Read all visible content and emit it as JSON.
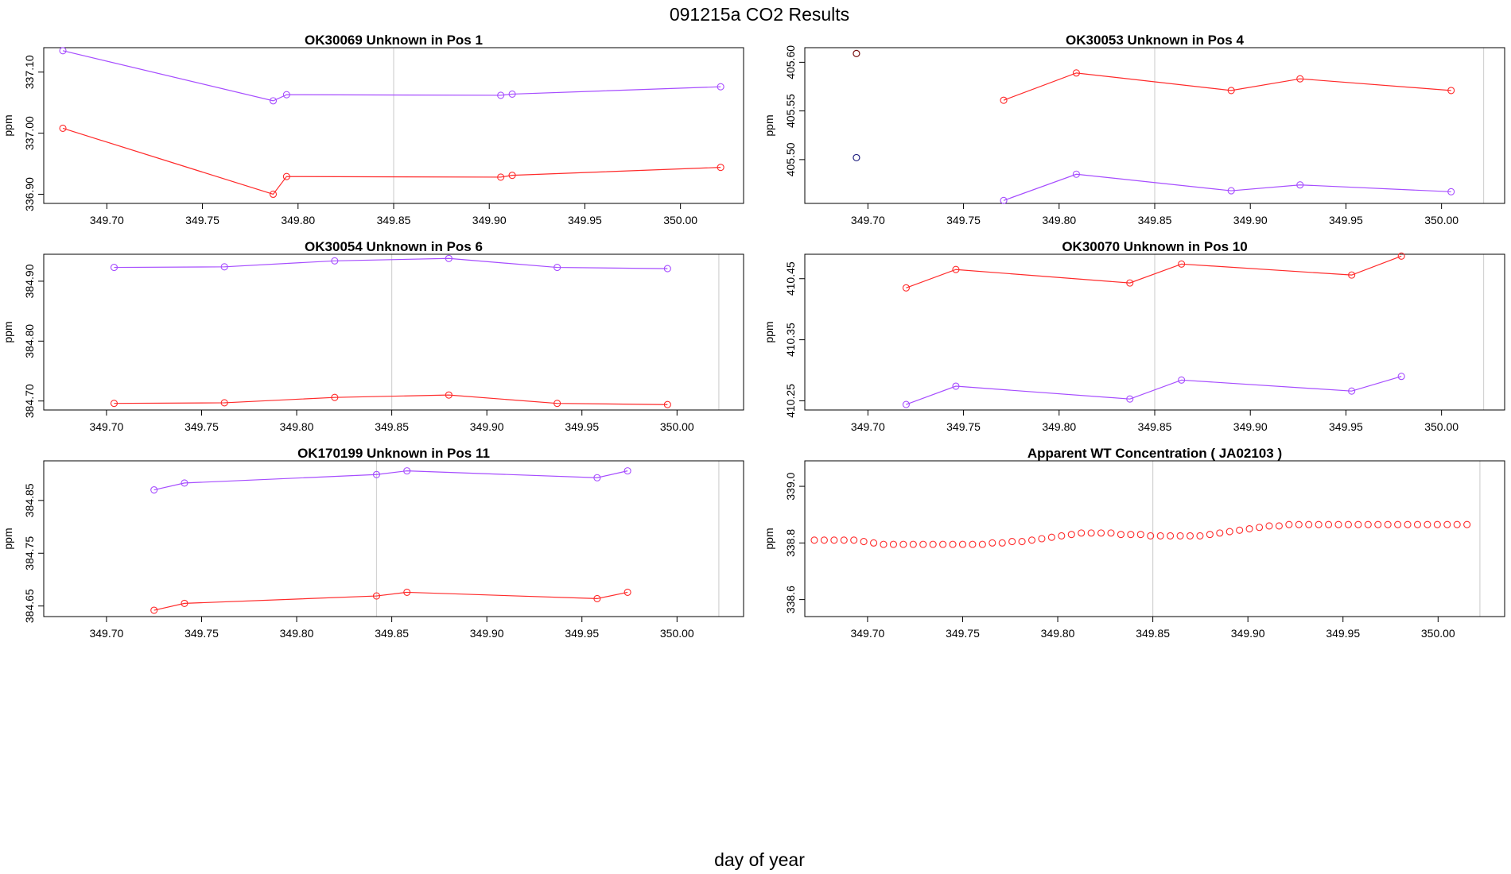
{
  "figure": {
    "title": "091215a  CO2 Results",
    "xlabel": "day of year"
  },
  "chart_data": [
    {
      "type": "line",
      "title": "OK30069    Unknown in Pos 1",
      "ylabel": "ppm",
      "xlim": [
        349.667,
        350.033
      ],
      "ylim": [
        336.885,
        337.14
      ],
      "xticks": [
        "349.70",
        "349.75",
        "349.80",
        "349.85",
        "349.90",
        "349.95",
        "350.00"
      ],
      "yticks": [
        "336.90",
        "337.00",
        "337.10"
      ],
      "vlines": [
        349.85
      ],
      "series": [
        {
          "name": "purple",
          "color": "#a64dff",
          "x": [
            349.677,
            349.787,
            349.794,
            349.906,
            349.912,
            350.021
          ],
          "y": [
            337.135,
            337.053,
            337.063,
            337.062,
            337.064,
            337.076
          ]
        },
        {
          "name": "red",
          "color": "#ff2a2a",
          "x": [
            349.677,
            349.787,
            349.794,
            349.906,
            349.912,
            350.021
          ],
          "y": [
            337.008,
            336.9,
            336.929,
            336.928,
            336.931,
            336.944
          ]
        }
      ]
    },
    {
      "type": "line",
      "title": "OK30053    Unknown in Pos 4",
      "ylabel": "ppm",
      "xlim": [
        349.667,
        350.033
      ],
      "ylim": [
        405.455,
        405.615
      ],
      "xticks": [
        "349.70",
        "349.75",
        "349.80",
        "349.85",
        "349.90",
        "349.95",
        "350.00"
      ],
      "yticks": [
        "405.50",
        "405.55",
        "405.60"
      ],
      "vlines": [
        349.85,
        350.022
      ],
      "series": [
        {
          "name": "red",
          "color": "#ff2a2a",
          "x": [
            349.771,
            349.809,
            349.89,
            349.926,
            350.005
          ],
          "y": [
            405.561,
            405.589,
            405.571,
            405.583,
            405.571
          ]
        },
        {
          "name": "purple",
          "color": "#a64dff",
          "x": [
            349.771,
            349.809,
            349.89,
            349.926,
            350.005
          ],
          "y": [
            405.458,
            405.485,
            405.468,
            405.474,
            405.467
          ]
        }
      ],
      "markers": [
        {
          "name": "dark-red",
          "color": "#7a1010",
          "x": 349.694,
          "y": 405.609
        },
        {
          "name": "dark-blue",
          "color": "#202080",
          "x": 349.694,
          "y": 405.502
        }
      ]
    },
    {
      "type": "line",
      "title": "OK30054    Unknown in Pos 6",
      "ylabel": "ppm",
      "xlim": [
        349.667,
        350.035
      ],
      "ylim": [
        384.685,
        384.945
      ],
      "xticks": [
        "349.70",
        "349.75",
        "349.80",
        "349.85",
        "349.90",
        "349.95",
        "350.00"
      ],
      "yticks": [
        "384.70",
        "384.80",
        "384.90"
      ],
      "vlines": [
        349.85,
        350.022
      ],
      "series": [
        {
          "name": "purple",
          "color": "#a64dff",
          "x": [
            349.704,
            349.762,
            349.82,
            349.88,
            349.937,
            349.995
          ],
          "y": [
            384.923,
            384.924,
            384.934,
            384.938,
            384.923,
            384.921
          ]
        },
        {
          "name": "red",
          "color": "#ff2a2a",
          "x": [
            349.704,
            349.762,
            349.82,
            349.88,
            349.937,
            349.995
          ],
          "y": [
            384.696,
            384.697,
            384.706,
            384.71,
            384.696,
            384.694
          ]
        }
      ]
    },
    {
      "type": "line",
      "title": "OK30070    Unknown in Pos 10",
      "ylabel": "ppm",
      "xlim": [
        349.667,
        350.033
      ],
      "ylim": [
        410.235,
        410.49
      ],
      "xticks": [
        "349.70",
        "349.75",
        "349.80",
        "349.85",
        "349.90",
        "349.95",
        "350.00"
      ],
      "yticks": [
        "410.25",
        "410.35",
        "410.45"
      ],
      "vlines": [
        349.85,
        350.022
      ],
      "series": [
        {
          "name": "red",
          "color": "#ff2a2a",
          "x": [
            349.72,
            349.746,
            349.837,
            349.864,
            349.953,
            349.979
          ],
          "y": [
            410.435,
            410.465,
            410.443,
            410.474,
            410.456,
            410.487
          ]
        },
        {
          "name": "purple",
          "color": "#a64dff",
          "x": [
            349.72,
            349.746,
            349.837,
            349.864,
            349.953,
            349.979
          ],
          "y": [
            410.244,
            410.274,
            410.253,
            410.284,
            410.266,
            410.29
          ]
        }
      ]
    },
    {
      "type": "line",
      "title": "OK170199    Unknown in Pos 11",
      "ylabel": "ppm",
      "xlim": [
        349.667,
        350.035
      ],
      "ylim": [
        384.63,
        384.925
      ],
      "xticks": [
        "349.70",
        "349.75",
        "349.80",
        "349.85",
        "349.90",
        "349.95",
        "350.00"
      ],
      "yticks": [
        "384.65",
        "384.75",
        "384.85"
      ],
      "vlines": [
        349.842,
        350.022
      ],
      "series": [
        {
          "name": "purple",
          "color": "#a64dff",
          "x": [
            349.725,
            349.741,
            349.842,
            349.858,
            349.958,
            349.974
          ],
          "y": [
            384.87,
            384.883,
            384.899,
            384.906,
            384.893,
            384.906
          ]
        },
        {
          "name": "red",
          "color": "#ff2a2a",
          "x": [
            349.725,
            349.741,
            349.842,
            349.858,
            349.958,
            349.974
          ],
          "y": [
            384.642,
            384.655,
            384.669,
            384.676,
            384.664,
            384.676
          ]
        }
      ]
    },
    {
      "type": "scatter",
      "title": "Apparent WT Concentration ( JA02103 )",
      "ylabel": "ppm",
      "xlim": [
        349.667,
        350.035
      ],
      "ylim": [
        338.54,
        339.09
      ],
      "xticks": [
        "349.70",
        "349.75",
        "349.80",
        "349.85",
        "349.90",
        "349.95",
        "350.00"
      ],
      "yticks": [
        "338.6",
        "338.8",
        "339.0"
      ],
      "vlines": [
        349.85,
        350.022
      ],
      "points_x_start": 349.672,
      "points_x_step": 0.0052,
      "points_count": 67,
      "color": "#ff2a2a",
      "y": [
        338.81,
        338.81,
        338.81,
        338.81,
        338.81,
        338.805,
        338.8,
        338.795,
        338.795,
        338.795,
        338.795,
        338.795,
        338.795,
        338.795,
        338.795,
        338.795,
        338.795,
        338.795,
        338.8,
        338.8,
        338.805,
        338.805,
        338.81,
        338.815,
        338.82,
        338.825,
        338.83,
        338.835,
        338.835,
        338.835,
        338.835,
        338.83,
        338.83,
        338.83,
        338.825,
        338.825,
        338.825,
        338.825,
        338.825,
        338.825,
        338.83,
        338.835,
        338.84,
        338.845,
        338.85,
        338.855,
        338.86,
        338.86,
        338.865,
        338.865,
        338.865,
        338.865,
        338.865,
        338.865,
        338.865,
        338.865,
        338.865,
        338.865,
        338.865,
        338.865,
        338.865,
        338.865,
        338.865,
        338.865,
        338.865,
        338.865,
        338.865
      ]
    }
  ]
}
